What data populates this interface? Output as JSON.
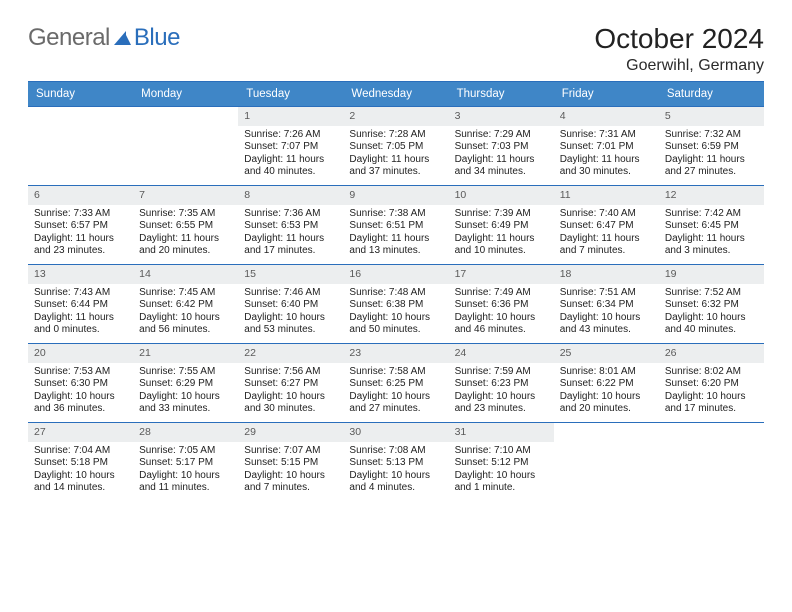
{
  "logo": {
    "general": "General",
    "blue": "Blue"
  },
  "title": "October 2024",
  "location": "Goerwihl, Germany",
  "colors": {
    "header_bg": "#3f86c7",
    "rule": "#2a6ebb",
    "daynum_bg": "#eceeef",
    "text": "#222222",
    "logo_blue": "#2a6ebb",
    "logo_gray": "#6a6a6a"
  },
  "dow": [
    "Sunday",
    "Monday",
    "Tuesday",
    "Wednesday",
    "Thursday",
    "Friday",
    "Saturday"
  ],
  "weeks": [
    [
      {
        "n": "",
        "s": "",
        "t": "",
        "d": ""
      },
      {
        "n": "",
        "s": "",
        "t": "",
        "d": ""
      },
      {
        "n": "1",
        "s": "Sunrise: 7:26 AM",
        "t": "Sunset: 7:07 PM",
        "d": "Daylight: 11 hours and 40 minutes."
      },
      {
        "n": "2",
        "s": "Sunrise: 7:28 AM",
        "t": "Sunset: 7:05 PM",
        "d": "Daylight: 11 hours and 37 minutes."
      },
      {
        "n": "3",
        "s": "Sunrise: 7:29 AM",
        "t": "Sunset: 7:03 PM",
        "d": "Daylight: 11 hours and 34 minutes."
      },
      {
        "n": "4",
        "s": "Sunrise: 7:31 AM",
        "t": "Sunset: 7:01 PM",
        "d": "Daylight: 11 hours and 30 minutes."
      },
      {
        "n": "5",
        "s": "Sunrise: 7:32 AM",
        "t": "Sunset: 6:59 PM",
        "d": "Daylight: 11 hours and 27 minutes."
      }
    ],
    [
      {
        "n": "6",
        "s": "Sunrise: 7:33 AM",
        "t": "Sunset: 6:57 PM",
        "d": "Daylight: 11 hours and 23 minutes."
      },
      {
        "n": "7",
        "s": "Sunrise: 7:35 AM",
        "t": "Sunset: 6:55 PM",
        "d": "Daylight: 11 hours and 20 minutes."
      },
      {
        "n": "8",
        "s": "Sunrise: 7:36 AM",
        "t": "Sunset: 6:53 PM",
        "d": "Daylight: 11 hours and 17 minutes."
      },
      {
        "n": "9",
        "s": "Sunrise: 7:38 AM",
        "t": "Sunset: 6:51 PM",
        "d": "Daylight: 11 hours and 13 minutes."
      },
      {
        "n": "10",
        "s": "Sunrise: 7:39 AM",
        "t": "Sunset: 6:49 PM",
        "d": "Daylight: 11 hours and 10 minutes."
      },
      {
        "n": "11",
        "s": "Sunrise: 7:40 AM",
        "t": "Sunset: 6:47 PM",
        "d": "Daylight: 11 hours and 7 minutes."
      },
      {
        "n": "12",
        "s": "Sunrise: 7:42 AM",
        "t": "Sunset: 6:45 PM",
        "d": "Daylight: 11 hours and 3 minutes."
      }
    ],
    [
      {
        "n": "13",
        "s": "Sunrise: 7:43 AM",
        "t": "Sunset: 6:44 PM",
        "d": "Daylight: 11 hours and 0 minutes."
      },
      {
        "n": "14",
        "s": "Sunrise: 7:45 AM",
        "t": "Sunset: 6:42 PM",
        "d": "Daylight: 10 hours and 56 minutes."
      },
      {
        "n": "15",
        "s": "Sunrise: 7:46 AM",
        "t": "Sunset: 6:40 PM",
        "d": "Daylight: 10 hours and 53 minutes."
      },
      {
        "n": "16",
        "s": "Sunrise: 7:48 AM",
        "t": "Sunset: 6:38 PM",
        "d": "Daylight: 10 hours and 50 minutes."
      },
      {
        "n": "17",
        "s": "Sunrise: 7:49 AM",
        "t": "Sunset: 6:36 PM",
        "d": "Daylight: 10 hours and 46 minutes."
      },
      {
        "n": "18",
        "s": "Sunrise: 7:51 AM",
        "t": "Sunset: 6:34 PM",
        "d": "Daylight: 10 hours and 43 minutes."
      },
      {
        "n": "19",
        "s": "Sunrise: 7:52 AM",
        "t": "Sunset: 6:32 PM",
        "d": "Daylight: 10 hours and 40 minutes."
      }
    ],
    [
      {
        "n": "20",
        "s": "Sunrise: 7:53 AM",
        "t": "Sunset: 6:30 PM",
        "d": "Daylight: 10 hours and 36 minutes."
      },
      {
        "n": "21",
        "s": "Sunrise: 7:55 AM",
        "t": "Sunset: 6:29 PM",
        "d": "Daylight: 10 hours and 33 minutes."
      },
      {
        "n": "22",
        "s": "Sunrise: 7:56 AM",
        "t": "Sunset: 6:27 PM",
        "d": "Daylight: 10 hours and 30 minutes."
      },
      {
        "n": "23",
        "s": "Sunrise: 7:58 AM",
        "t": "Sunset: 6:25 PM",
        "d": "Daylight: 10 hours and 27 minutes."
      },
      {
        "n": "24",
        "s": "Sunrise: 7:59 AM",
        "t": "Sunset: 6:23 PM",
        "d": "Daylight: 10 hours and 23 minutes."
      },
      {
        "n": "25",
        "s": "Sunrise: 8:01 AM",
        "t": "Sunset: 6:22 PM",
        "d": "Daylight: 10 hours and 20 minutes."
      },
      {
        "n": "26",
        "s": "Sunrise: 8:02 AM",
        "t": "Sunset: 6:20 PM",
        "d": "Daylight: 10 hours and 17 minutes."
      }
    ],
    [
      {
        "n": "27",
        "s": "Sunrise: 7:04 AM",
        "t": "Sunset: 5:18 PM",
        "d": "Daylight: 10 hours and 14 minutes."
      },
      {
        "n": "28",
        "s": "Sunrise: 7:05 AM",
        "t": "Sunset: 5:17 PM",
        "d": "Daylight: 10 hours and 11 minutes."
      },
      {
        "n": "29",
        "s": "Sunrise: 7:07 AM",
        "t": "Sunset: 5:15 PM",
        "d": "Daylight: 10 hours and 7 minutes."
      },
      {
        "n": "30",
        "s": "Sunrise: 7:08 AM",
        "t": "Sunset: 5:13 PM",
        "d": "Daylight: 10 hours and 4 minutes."
      },
      {
        "n": "31",
        "s": "Sunrise: 7:10 AM",
        "t": "Sunset: 5:12 PM",
        "d": "Daylight: 10 hours and 1 minute."
      },
      {
        "n": "",
        "s": "",
        "t": "",
        "d": ""
      },
      {
        "n": "",
        "s": "",
        "t": "",
        "d": ""
      }
    ]
  ]
}
